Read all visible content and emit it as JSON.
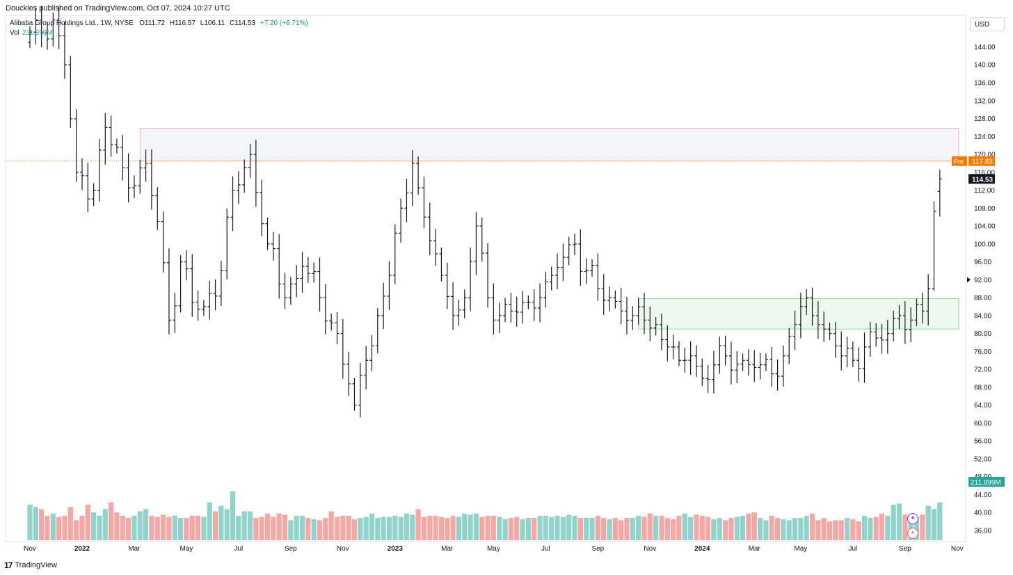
{
  "header": {
    "publisher": "Douckies published on TradingView.com, Oct 07, 2024 10:27 UTC"
  },
  "legend": {
    "symbol": "Alibaba Group Holdings Ltd., 1W, NYSE",
    "open_label": "O",
    "open": "111.72",
    "high_label": "H",
    "high": "116.57",
    "low_label": "L",
    "low": "106.11",
    "close_label": "C",
    "close": "114.53",
    "change": "+7.20 (+6.71%)",
    "vol_label": "Vol",
    "vol_value": "211.899M"
  },
  "currency": "USD",
  "footer": {
    "logo": "17",
    "brand": "TradingView"
  },
  "icons": {
    "ai": "sparkle-icon",
    "alert": "lightning-icon",
    "logo": "tradingview-logo-icon"
  },
  "colors": {
    "up": "#26a69a",
    "down": "#ef5350",
    "bar": "#131722",
    "pre": "#f57c00",
    "resistance_zone": "#f0f3fa",
    "support_zone": "#e8f5e9"
  },
  "chart_data": {
    "type": "ohlc-bar",
    "interval": "1W",
    "ylim": [
      34,
      148
    ],
    "yticks": [
      "144.00",
      "140.00",
      "136.00",
      "132.00",
      "128.00",
      "124.00",
      "120.00",
      "116.00",
      "112.00",
      "108.00",
      "104.00",
      "100.00",
      "96.00",
      "92.00",
      "88.00",
      "84.00",
      "80.00",
      "76.00",
      "72.00",
      "68.00",
      "64.00",
      "60.00",
      "56.00",
      "52.00",
      "48.00",
      "44.00",
      "40.00",
      "36.00"
    ],
    "xticks": [
      {
        "label": "Nov",
        "week": 0
      },
      {
        "label": "2022",
        "week": 9
      },
      {
        "label": "Mar",
        "week": 18
      },
      {
        "label": "May",
        "week": 27
      },
      {
        "label": "Jul",
        "week": 36
      },
      {
        "label": "Sep",
        "week": 45
      },
      {
        "label": "Nov",
        "week": 54
      },
      {
        "label": "2023",
        "week": 63
      },
      {
        "label": "Mar",
        "week": 72
      },
      {
        "label": "May",
        "week": 80
      },
      {
        "label": "Jul",
        "week": 89
      },
      {
        "label": "Sep",
        "week": 98
      },
      {
        "label": "Nov",
        "week": 107
      },
      {
        "label": "2024",
        "week": 116
      },
      {
        "label": "Mar",
        "week": 125
      },
      {
        "label": "May",
        "week": 133
      },
      {
        "label": "Jul",
        "week": 142
      },
      {
        "label": "Sep",
        "week": 151
      },
      {
        "label": "Nov",
        "week": 160
      }
    ],
    "price_labels": {
      "pre_tag": "Pre",
      "pre": "117.83",
      "last": "114.53",
      "volume": "211.899M"
    },
    "zones": [
      {
        "name": "resistance",
        "from_week": 19,
        "to_week": 161,
        "low": 118.5,
        "high": 125.8
      },
      {
        "name": "support",
        "from_week": 105,
        "to_week": 161,
        "low": 81,
        "high": 87.8
      }
    ],
    "pre_line": 118.5,
    "arrow_price": 92,
    "anchors": [
      [
        -1,
        145,
        "d"
      ],
      [
        4,
        150,
        "d"
      ],
      [
        6,
        140,
        "d"
      ],
      [
        8,
        116,
        "d"
      ],
      [
        11,
        112,
        "d"
      ],
      [
        13,
        126,
        "u"
      ],
      [
        16,
        117,
        "d"
      ],
      [
        18,
        113,
        "d"
      ],
      [
        20,
        118,
        "u"
      ],
      [
        22,
        105,
        "d"
      ],
      [
        24,
        83,
        "d"
      ],
      [
        26,
        96,
        "u"
      ],
      [
        28,
        87,
        "d"
      ],
      [
        30,
        86,
        "u"
      ],
      [
        33,
        94,
        "u"
      ],
      [
        35,
        112,
        "u"
      ],
      [
        38,
        120,
        "u"
      ],
      [
        41,
        100,
        "d"
      ],
      [
        44,
        88,
        "d"
      ],
      [
        47,
        95,
        "u"
      ],
      [
        50,
        88,
        "d"
      ],
      [
        53,
        80,
        "d"
      ],
      [
        56,
        64,
        "d"
      ],
      [
        58,
        74,
        "u"
      ],
      [
        60,
        84,
        "u"
      ],
      [
        62,
        93,
        "u"
      ],
      [
        64,
        108,
        "u"
      ],
      [
        66,
        118,
        "u"
      ],
      [
        68,
        106,
        "d"
      ],
      [
        71,
        93,
        "d"
      ],
      [
        73,
        84,
        "d"
      ],
      [
        75,
        88,
        "u"
      ],
      [
        77,
        104,
        "u"
      ],
      [
        79,
        88,
        "d"
      ],
      [
        81,
        84,
        "d"
      ],
      [
        83,
        85,
        "u"
      ],
      [
        86,
        87,
        "u"
      ],
      [
        88,
        88,
        "u"
      ],
      [
        90,
        93,
        "u"
      ],
      [
        92,
        97,
        "u"
      ],
      [
        94,
        100,
        "u"
      ],
      [
        96,
        94,
        "d"
      ],
      [
        98,
        90,
        "d"
      ],
      [
        100,
        88,
        "d"
      ],
      [
        102,
        85,
        "d"
      ],
      [
        104,
        84,
        "d"
      ],
      [
        106,
        83,
        "d"
      ],
      [
        108,
        82,
        "d"
      ],
      [
        110,
        77,
        "d"
      ],
      [
        112,
        74,
        "d"
      ],
      [
        114,
        75,
        "u"
      ],
      [
        116,
        70,
        "d"
      ],
      [
        118,
        73,
        "u"
      ],
      [
        120,
        75,
        "u"
      ],
      [
        123,
        74,
        "u"
      ],
      [
        126,
        73,
        "d"
      ],
      [
        128,
        71,
        "d"
      ],
      [
        130,
        75,
        "u"
      ],
      [
        132,
        82,
        "u"
      ],
      [
        134,
        88,
        "u"
      ],
      [
        136,
        82,
        "d"
      ],
      [
        138,
        80,
        "d"
      ],
      [
        140,
        75,
        "d"
      ],
      [
        142,
        74,
        "d"
      ],
      [
        144,
        77,
        "u"
      ],
      [
        146,
        79,
        "u"
      ],
      [
        148,
        80,
        "u"
      ],
      [
        150,
        84,
        "u"
      ],
      [
        152,
        83,
        "d"
      ],
      [
        154,
        85,
        "u"
      ],
      [
        155,
        90,
        "u"
      ],
      [
        156,
        107.5,
        "u"
      ],
      [
        157,
        114.5,
        "u"
      ]
    ],
    "volume_ylim": [
      0,
      100
    ],
    "volume_series": [
      32,
      30,
      28,
      22,
      24,
      21,
      22,
      30,
      18,
      22,
      32,
      25,
      22,
      28,
      34,
      25,
      22,
      20,
      22,
      26,
      28,
      22,
      21,
      23,
      21,
      22,
      20,
      20,
      22,
      22,
      21,
      34,
      26,
      31,
      28,
      44,
      22,
      26,
      26,
      20,
      21,
      24,
      21,
      24,
      23,
      18,
      22,
      22,
      20,
      19,
      18,
      20,
      26,
      21,
      22,
      22,
      19,
      20,
      21,
      24,
      20,
      21,
      21,
      22,
      21,
      24,
      23,
      28,
      21,
      22,
      22,
      21,
      20,
      22,
      21,
      24,
      23,
      24,
      21,
      22,
      22,
      21,
      19,
      20,
      21,
      19,
      20,
      20,
      22,
      22,
      21,
      22,
      21,
      23,
      22,
      20,
      20,
      20,
      22,
      20,
      19,
      20,
      18,
      20,
      20,
      22,
      21,
      24,
      22,
      22,
      20,
      19,
      22,
      24,
      21,
      23,
      22,
      21,
      19,
      20,
      18,
      20,
      21,
      22,
      24,
      25,
      20,
      18,
      22,
      20,
      19,
      18,
      20,
      20,
      22,
      24,
      18,
      20,
      17,
      18,
      18,
      20,
      19,
      17,
      22,
      20,
      21,
      24,
      22,
      32,
      33,
      23,
      22,
      21,
      23,
      31,
      28,
      34
    ],
    "volume_notes": "relative heights; colors follow bar direction"
  }
}
